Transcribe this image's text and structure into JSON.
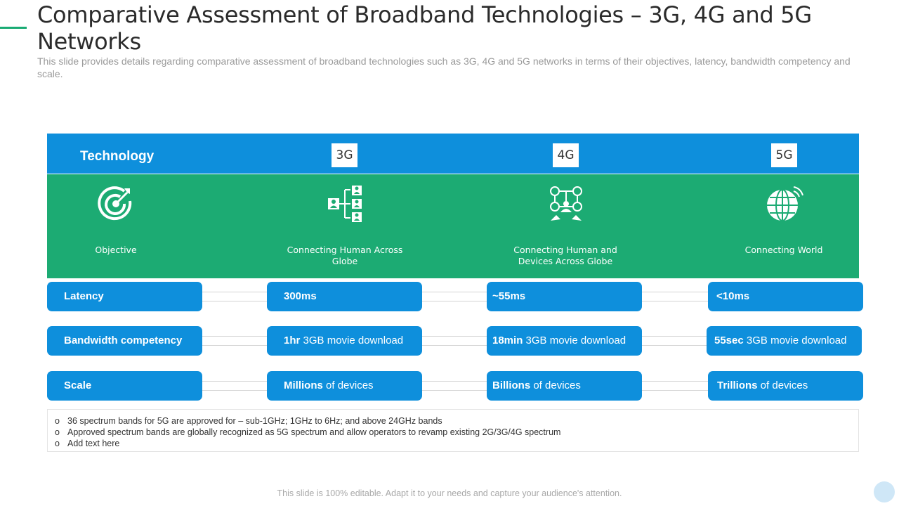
{
  "title": "Comparative Assessment of Broadband Technologies – 3G, 4G and 5G Networks",
  "subtitle": "This slide provides details regarding comparative assessment of broadband technologies such as 3G, 4G and 5G networks in terms of their objectives, latency, bandwidth competency and scale.",
  "colors": {
    "header_blue": "#0e8fdc",
    "objective_green": "#1cab73",
    "accent": "#1aab74"
  },
  "header": {
    "label": "Technology",
    "generations": [
      "3G",
      "4G",
      "5G"
    ]
  },
  "objective_row": {
    "label": "Objective",
    "icons": [
      "target-icon",
      "human-network-icon",
      "device-network-icon",
      "globe-wireless-icon"
    ],
    "values": [
      "Connecting Human Across Globe",
      "Connecting Human and Devices Across Globe",
      "Connecting World"
    ]
  },
  "rows": [
    {
      "label": "Latency",
      "cells": [
        {
          "bold": "300ms",
          "rest": ""
        },
        {
          "bold": "~55ms",
          "rest": ""
        },
        {
          "bold": "<10ms",
          "rest": ""
        }
      ]
    },
    {
      "label": "Bandwidth competency",
      "cells": [
        {
          "bold": "1hr",
          "rest": " 3GB movie download"
        },
        {
          "bold": "18min",
          "rest": " 3GB movie download"
        },
        {
          "bold": "55sec",
          "rest": " 3GB movie download"
        }
      ]
    },
    {
      "label": "Scale",
      "cells": [
        {
          "bold": "Millions",
          "rest": " of devices"
        },
        {
          "bold": "Billions",
          "rest": " of devices"
        },
        {
          "bold": "Trillions",
          "rest": " of devices"
        }
      ]
    }
  ],
  "notes": {
    "bullet": "o",
    "items": [
      "36 spectrum bands for 5G are approved for – sub-1GHz; 1GHz to 6Hz; and above 24GHz bands",
      "Approved spectrum bands are globally recognized as 5G spectrum and allow operators to revamp existing 2G/3G/4G spectrum",
      "Add text here"
    ]
  },
  "footer": "This slide is 100% editable. Adapt it to your needs and capture your audience's attention."
}
